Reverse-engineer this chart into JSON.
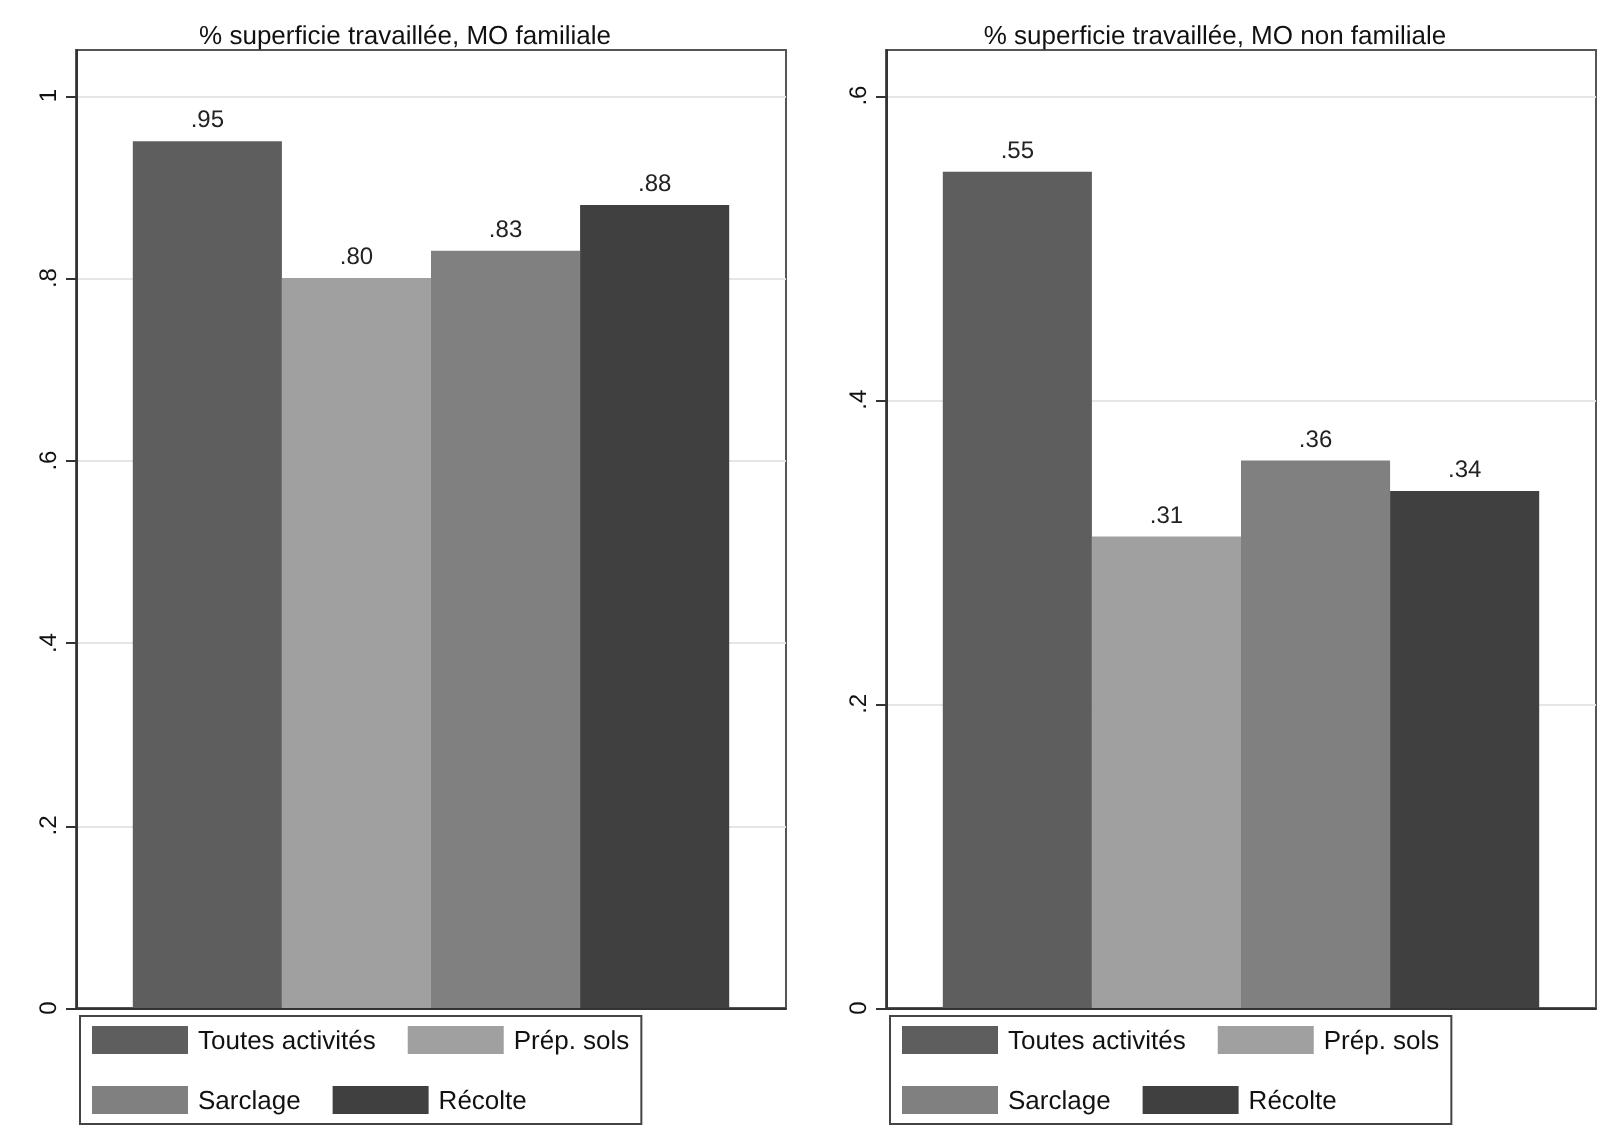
{
  "chart_data": [
    {
      "type": "bar",
      "title": "% superficie travaillée, MO familiale",
      "categories": [
        null
      ],
      "series": [
        {
          "name": "Toutes activités",
          "color": "#5e5e5e",
          "values": [
            0.95
          ],
          "value_labels": [
            ".95"
          ]
        },
        {
          "name": "Prép. sols",
          "color": "#a0a0a0",
          "values": [
            0.8
          ],
          "value_labels": [
            ".80"
          ]
        },
        {
          "name": "Sarclage",
          "color": "#808080",
          "values": [
            0.83
          ],
          "value_labels": [
            ".83"
          ]
        },
        {
          "name": "Récolte",
          "color": "#404040",
          "values": [
            0.88
          ],
          "value_labels": [
            ".88"
          ]
        }
      ],
      "ylim": [
        0,
        1.05
      ],
      "yticks": [
        {
          "value": 0,
          "label": "0"
        },
        {
          "value": 0.2,
          "label": ".2"
        },
        {
          "value": 0.4,
          "label": ".4"
        },
        {
          "value": 0.6,
          "label": ".6"
        },
        {
          "value": 0.8,
          "label": ".8"
        },
        {
          "value": 1,
          "label": "1"
        }
      ],
      "grid": "y",
      "legend": "bottom"
    },
    {
      "type": "bar",
      "title": "% superficie travaillée, MO non familiale",
      "categories": [
        null
      ],
      "series": [
        {
          "name": "Toutes activités",
          "color": "#5e5e5e",
          "values": [
            0.55
          ],
          "value_labels": [
            ".55"
          ]
        },
        {
          "name": "Prép. sols",
          "color": "#a0a0a0",
          "values": [
            0.31
          ],
          "value_labels": [
            ".31"
          ]
        },
        {
          "name": "Sarclage",
          "color": "#808080",
          "values": [
            0.36
          ],
          "value_labels": [
            ".36"
          ]
        },
        {
          "name": "Récolte",
          "color": "#404040",
          "values": [
            0.34
          ],
          "value_labels": [
            ".34"
          ]
        }
      ],
      "ylim": [
        0,
        0.63
      ],
      "yticks": [
        {
          "value": 0,
          "label": "0"
        },
        {
          "value": 0.2,
          "label": ".2"
        },
        {
          "value": 0.4,
          "label": ".4"
        },
        {
          "value": 0.6,
          "label": ".6"
        }
      ],
      "grid": "y",
      "legend": "bottom"
    }
  ]
}
